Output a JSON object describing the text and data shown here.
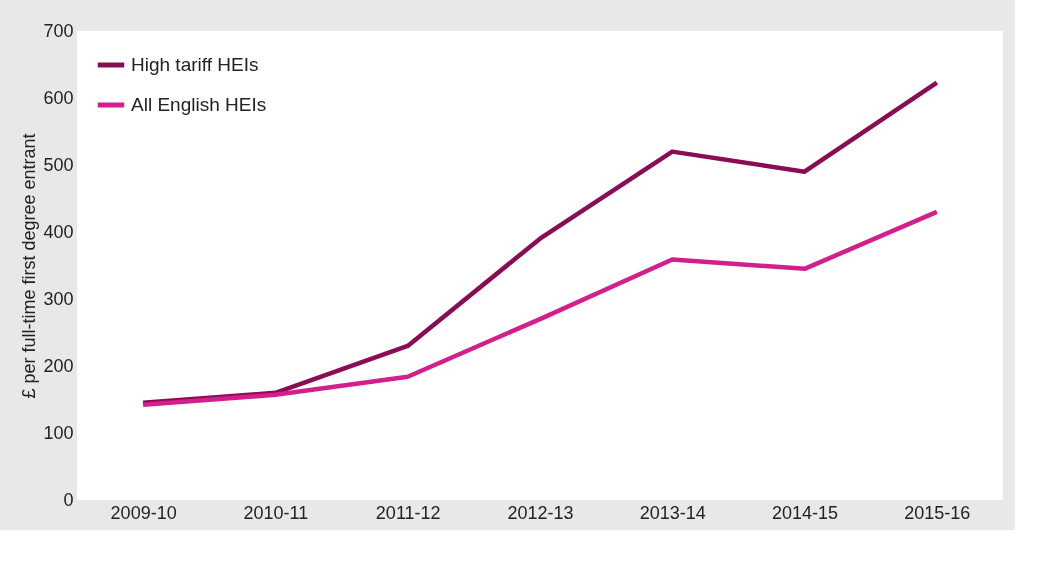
{
  "chart_data": {
    "type": "line",
    "ylabel": "£ per full-time first degree entrant",
    "categories": [
      "2009-10",
      "2010-11",
      "2011-12",
      "2012-13",
      "2013-14",
      "2014-15",
      "2015-16"
    ],
    "series": [
      {
        "name": "High tariff HEIs",
        "color": "#8a0c55",
        "values": [
          145,
          160,
          230,
          390,
          520,
          490,
          623
        ]
      },
      {
        "name": "All English HEIs",
        "color": "#d21f8b",
        "values": [
          142,
          157,
          184,
          270,
          359,
          345,
          430
        ]
      }
    ],
    "ylim": [
      0,
      700
    ],
    "yticks": [
      0,
      100,
      200,
      300,
      400,
      500,
      600,
      700
    ],
    "grid": false,
    "legend": "top left",
    "marker": "none",
    "line_style": "solid"
  }
}
